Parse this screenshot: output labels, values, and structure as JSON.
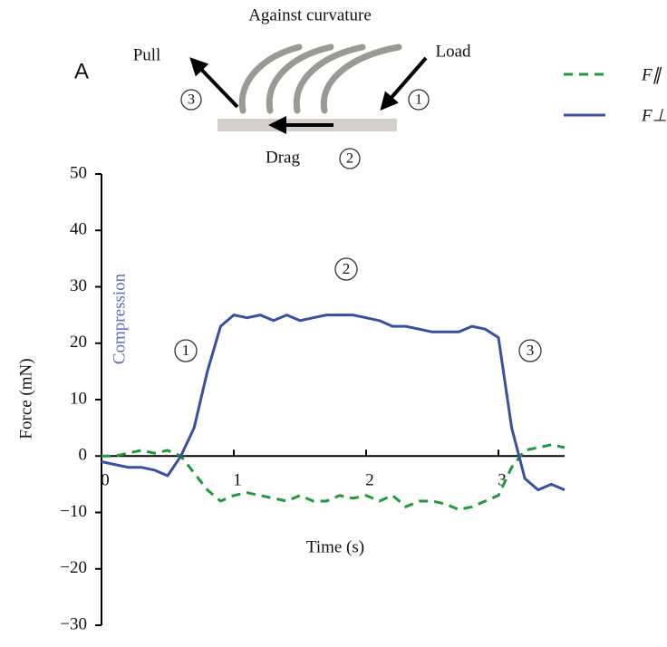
{
  "diagram": {
    "panel_label": "A",
    "title": "Against curvature",
    "pull": "Pull",
    "load": "Load",
    "drag": "Drag",
    "steps": [
      "1",
      "2",
      "3"
    ]
  },
  "chart_data": {
    "type": "line",
    "ylabel": "Force (mN)",
    "xlabel": "Time (s)",
    "annotation": "Compression",
    "phases": [
      "1",
      "2",
      "3"
    ],
    "x": [
      0,
      0.1,
      0.2,
      0.3,
      0.4,
      0.5,
      0.6,
      0.7,
      0.8,
      0.9,
      1.0,
      1.1,
      1.2,
      1.3,
      1.4,
      1.5,
      1.6,
      1.7,
      1.8,
      1.9,
      2.0,
      2.1,
      2.2,
      2.3,
      2.4,
      2.5,
      2.6,
      2.7,
      2.8,
      2.9,
      3.0,
      3.1,
      3.2,
      3.3,
      3.4,
      3.5
    ],
    "series": [
      {
        "name": "F∥",
        "color": "#1e9a3c",
        "dashed": true,
        "values": [
          0,
          0,
          0.5,
          1,
          0.5,
          1,
          0,
          -3,
          -6,
          -8,
          -7,
          -6.5,
          -7,
          -7.5,
          -8,
          -7,
          -8,
          -8,
          -7,
          -7.5,
          -7,
          -8,
          -7,
          -9,
          -8,
          -8,
          -8.5,
          -9.5,
          -9,
          -8,
          -7,
          -2,
          1,
          1.5,
          2,
          1.5
        ]
      },
      {
        "name": "F⊥",
        "color": "#3a4fa0",
        "dashed": false,
        "values": [
          -1,
          -1.5,
          -2,
          -2,
          -2.5,
          -3.5,
          0,
          5,
          15,
          23,
          25,
          24.5,
          25,
          24,
          25,
          24,
          24.5,
          25,
          25,
          25,
          24.5,
          24,
          23,
          23,
          22.5,
          22,
          22,
          22,
          23,
          22.5,
          21,
          5,
          -4,
          -6,
          -5,
          -6
        ]
      }
    ],
    "xlim": [
      0,
      3.5
    ],
    "xticks": [
      0,
      1,
      2,
      3
    ],
    "ylim": [
      -30,
      50
    ],
    "yticks": [
      {
        "value": -30,
        "label": "−30"
      },
      {
        "value": -20,
        "label": "−20"
      },
      {
        "value": -10,
        "label": "−10"
      },
      0,
      10,
      20,
      30,
      40,
      50
    ]
  }
}
